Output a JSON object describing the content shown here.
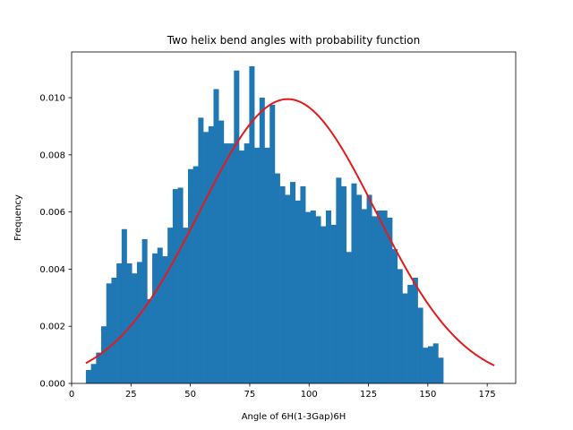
{
  "chart_data": {
    "type": "bar",
    "title": "Two helix bend angles with probability function",
    "xlabel": "Angle of 6H(1-3Gap)6H",
    "ylabel": "Frequency",
    "xlim": [
      0,
      187
    ],
    "ylim": [
      0,
      0.0116
    ],
    "xticks": [
      0,
      25,
      50,
      75,
      100,
      125,
      150,
      175
    ],
    "xtick_labels": [
      "0",
      "25",
      "50",
      "75",
      "100",
      "125",
      "150",
      "175"
    ],
    "yticks": [
      0.0,
      0.002,
      0.004,
      0.006,
      0.008,
      0.01
    ],
    "ytick_labels": [
      "0.000",
      "0.002",
      "0.004",
      "0.006",
      "0.008",
      "0.010"
    ],
    "bin_start": 6,
    "bin_width": 2.15,
    "bar_color": "#1f77b4",
    "values": [
      0.00047,
      0.00068,
      0.00108,
      0.002,
      0.0035,
      0.0037,
      0.0042,
      0.0054,
      0.0042,
      0.00385,
      0.00425,
      0.00505,
      0.00295,
      0.00455,
      0.00475,
      0.00445,
      0.00545,
      0.0068,
      0.00685,
      0.00545,
      0.0075,
      0.0076,
      0.0093,
      0.0088,
      0.009,
      0.0103,
      0.0092,
      0.0084,
      0.0084,
      0.01095,
      0.00815,
      0.0084,
      0.0111,
      0.00825,
      0.01,
      0.00825,
      0.00975,
      0.00735,
      0.0069,
      0.0066,
      0.00705,
      0.0064,
      0.0069,
      0.006,
      0.00605,
      0.00585,
      0.0055,
      0.00605,
      0.00555,
      0.0072,
      0.0069,
      0.0046,
      0.007,
      0.0066,
      0.0061,
      0.0066,
      0.00585,
      0.00605,
      0.00605,
      0.0058,
      0.0047,
      0.004,
      0.00315,
      0.00345,
      0.0037,
      0.00265,
      0.00125,
      0.0013,
      0.0014,
      0.0009
    ],
    "curve": {
      "label": "probability function",
      "color": "#e41a1c",
      "mean": 91,
      "sd": 37,
      "peak": 0.00995,
      "x_range": [
        6,
        178
      ]
    }
  }
}
